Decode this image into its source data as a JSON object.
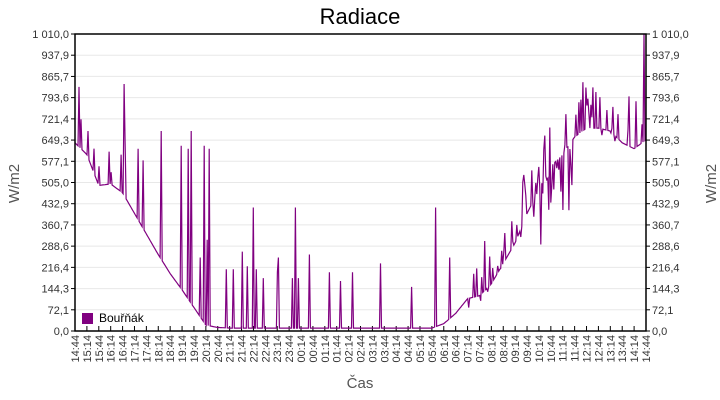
{
  "chart_data": {
    "type": "line",
    "title": "Radiace",
    "xlabel": "Čas",
    "ylabel": "W/m2",
    "ylim": [
      0,
      1010
    ],
    "yticks": [
      "0,0",
      "72,1",
      "144,3",
      "216,4",
      "288,6",
      "360,7",
      "432,9",
      "505,0",
      "577,1",
      "649,3",
      "721,4",
      "793,6",
      "865,7",
      "937,9",
      "1 010,0"
    ],
    "ytick_values": [
      0,
      72.1,
      144.3,
      216.4,
      288.6,
      360.7,
      432.9,
      505.0,
      577.1,
      649.3,
      721.4,
      793.6,
      865.7,
      937.9,
      1010.0
    ],
    "xticks": [
      "14:44",
      "15:14",
      "15:44",
      "16:14",
      "16:44",
      "17:14",
      "17:44",
      "18:14",
      "18:44",
      "19:14",
      "19:44",
      "20:14",
      "20:44",
      "21:14",
      "21:44",
      "22:14",
      "22:44",
      "23:14",
      "23:44",
      "00:14",
      "00:44",
      "01:14",
      "01:44",
      "02:14",
      "02:44",
      "03:14",
      "03:44",
      "04:14",
      "04:44",
      "05:14",
      "05:44",
      "06:14",
      "06:44",
      "07:14",
      "07:44",
      "08:14",
      "08:44",
      "09:14",
      "09:44",
      "10:14",
      "10:44",
      "11:14",
      "11:44",
      "12:14",
      "12:44",
      "13:14",
      "13:44",
      "14:14",
      "14:44"
    ],
    "grid": true,
    "legend_position": "bottom-left-inside",
    "series": [
      {
        "name": "Bouřňák",
        "color": "#800080",
        "baseline": [
          640,
          600,
          495,
          500,
          470,
          400,
          330,
          260,
          195,
          140,
          80,
          20,
          12,
          10,
          10,
          10,
          10,
          10,
          10,
          10,
          10,
          10,
          10,
          10,
          10,
          10,
          10,
          10,
          10,
          10,
          10,
          25,
          60,
          110,
          120,
          160,
          230,
          300,
          400,
          480,
          560,
          600,
          660,
          690,
          690,
          680,
          640,
          620,
          650
        ],
        "spikes": [
          {
            "t": 0.3,
            "v": 830
          },
          {
            "t": 0.5,
            "v": 720
          },
          {
            "t": 1.1,
            "v": 680
          },
          {
            "t": 1.6,
            "v": 620
          },
          {
            "t": 2.0,
            "v": 560
          },
          {
            "t": 2.9,
            "v": 610
          },
          {
            "t": 3.0,
            "v": 540
          },
          {
            "t": 3.9,
            "v": 600
          },
          {
            "t": 4.1,
            "v": 840
          },
          {
            "t": 4.2,
            "v": 640
          },
          {
            "t": 5.3,
            "v": 620
          },
          {
            "t": 5.7,
            "v": 580
          },
          {
            "t": 7.2,
            "v": 680
          },
          {
            "t": 8.9,
            "v": 630
          },
          {
            "t": 9.5,
            "v": 620
          },
          {
            "t": 9.8,
            "v": 680
          },
          {
            "t": 10.5,
            "v": 250
          },
          {
            "t": 10.9,
            "v": 630
          },
          {
            "t": 11.1,
            "v": 310
          },
          {
            "t": 11.3,
            "v": 620
          },
          {
            "t": 12.7,
            "v": 210
          },
          {
            "t": 13.3,
            "v": 210
          },
          {
            "t": 14.1,
            "v": 270
          },
          {
            "t": 14.5,
            "v": 220
          },
          {
            "t": 15.0,
            "v": 420
          },
          {
            "t": 15.2,
            "v": 210
          },
          {
            "t": 15.8,
            "v": 180
          },
          {
            "t": 17.0,
            "v": 200
          },
          {
            "t": 17.1,
            "v": 250
          },
          {
            "t": 18.3,
            "v": 180
          },
          {
            "t": 18.5,
            "v": 420
          },
          {
            "t": 18.8,
            "v": 180
          },
          {
            "t": 19.7,
            "v": 260
          },
          {
            "t": 21.4,
            "v": 200
          },
          {
            "t": 22.3,
            "v": 170
          },
          {
            "t": 23.3,
            "v": 200
          },
          {
            "t": 25.7,
            "v": 230
          },
          {
            "t": 28.3,
            "v": 150
          },
          {
            "t": 30.3,
            "v": 420
          },
          {
            "t": 31.5,
            "v": 250
          }
        ],
        "noise_start": 33,
        "noise_amplitude": 260
      }
    ]
  },
  "legend": {
    "label": "Bouřňák",
    "color": "#800080"
  }
}
